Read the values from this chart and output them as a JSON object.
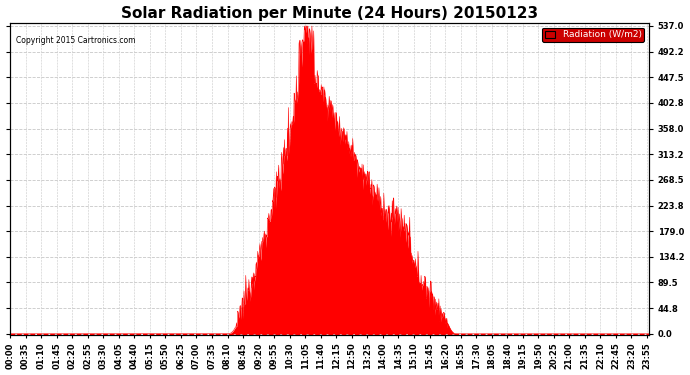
{
  "title": "Solar Radiation per Minute (24 Hours) 20150123",
  "copyright_text": "Copyright 2015 Cartronics.com",
  "legend_label": "Radiation (W/m2)",
  "yticks": [
    0.0,
    44.8,
    89.5,
    134.2,
    179.0,
    223.8,
    268.5,
    313.2,
    358.0,
    402.8,
    447.5,
    492.2,
    537.0
  ],
  "ymax": 537.0,
  "ymin": 0.0,
  "fill_color": "#FF0000",
  "line_color": "#FF0000",
  "zero_line_color": "#FF0000",
  "background_color": "#FFFFFF",
  "grid_color": "#C8C8C8",
  "title_fontsize": 11,
  "tick_fontsize": 6,
  "legend_bg": "#CC0000",
  "legend_text_color": "#FFFFFF",
  "total_minutes": 1440,
  "sunrise_minute": 490,
  "sunset_minute": 1005,
  "peak_minute": 665,
  "peak_value": 537.0,
  "xtick_interval": 35
}
